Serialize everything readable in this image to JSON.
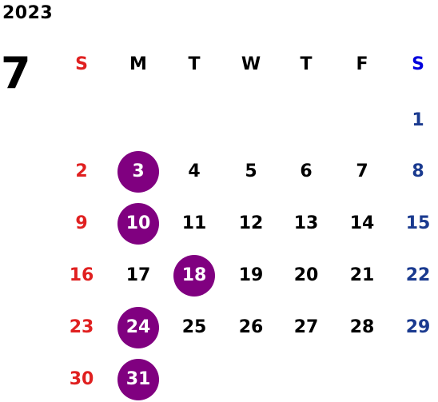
{
  "calendar": {
    "year": "2023",
    "month": "7",
    "weekdays": [
      "S",
      "M",
      "T",
      "W",
      "T",
      "F",
      "S"
    ],
    "first_weekday_index": 6,
    "days_in_month": 31,
    "highlighted_days": [
      3,
      10,
      18,
      24,
      31
    ]
  },
  "colors": {
    "text": "#000000",
    "sunday": "#e02020",
    "saturday_header": "#0000dd",
    "saturday_day": "#1a3a8f",
    "highlight_bg": "#800080",
    "highlight_text": "#ffffff"
  }
}
